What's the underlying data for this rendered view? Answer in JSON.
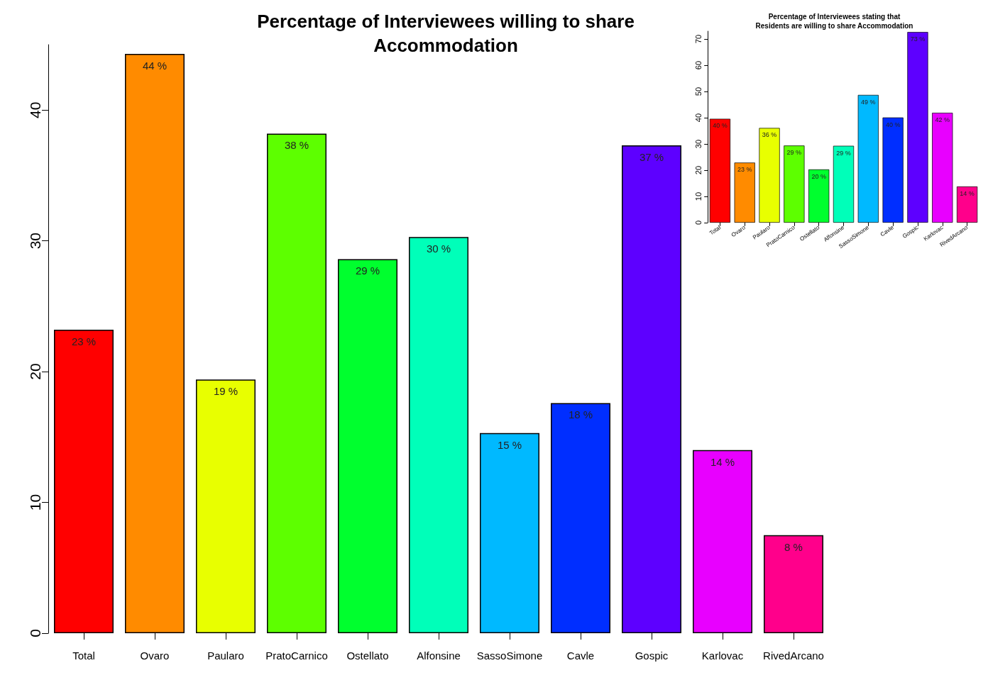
{
  "chart_data": [
    {
      "type": "bar",
      "title": "Percentage of Interviewees willing to share\nAccommodation",
      "categories": [
        "Total",
        "Ovaro",
        "Paularo",
        "PratoCarnico",
        "Ostellato",
        "Alfonsine",
        "SassoSimone",
        "Cavle",
        "Gospic",
        "Karlovac",
        "RivedArcano"
      ],
      "values": [
        23.2,
        44.3,
        19.4,
        38.2,
        28.6,
        30.3,
        15.3,
        17.6,
        37.3,
        14.0,
        7.5
      ],
      "value_labels": [
        "23 %",
        "44 %",
        "19 %",
        "38 %",
        "29 %",
        "30 %",
        "15 %",
        "18 %",
        "37 %",
        "14 %",
        "8 %"
      ],
      "colors": [
        "#ff0000",
        "#ff8b00",
        "#e8ff00",
        "#5dff00",
        "#00ff2e",
        "#00ffb9",
        "#00b9ff",
        "#002eff",
        "#5d00ff",
        "#e800ff",
        "#ff008b"
      ],
      "ylim": [
        0,
        45
      ],
      "yticks": [
        0,
        10,
        20,
        30,
        40
      ],
      "grid": false
    },
    {
      "type": "bar",
      "title": "Percentage of Interviewees stating that\nResidents are willing to share Accommodation",
      "categories": [
        "Total",
        "Ovaro",
        "Paularo",
        "PratoCarnico",
        "Ostellato",
        "Alfonsine",
        "SassoSimone",
        "Cavle",
        "Gospic",
        "Karlovac",
        "RivedArcano"
      ],
      "values": [
        39.6,
        22.9,
        36.1,
        29.4,
        20.3,
        29.3,
        48.7,
        40.1,
        72.7,
        41.9,
        13.8
      ],
      "value_labels": [
        "40 %",
        "23 %",
        "36 %",
        "29 %",
        "20 %",
        "29 %",
        "49 %",
        "40 %",
        "73 %",
        "42 %",
        "14 %"
      ],
      "colors": [
        "#ff0000",
        "#ff8b00",
        "#e8ff00",
        "#5dff00",
        "#00ff2e",
        "#00ffb9",
        "#00b9ff",
        "#002eff",
        "#5d00ff",
        "#e800ff",
        "#ff008b"
      ],
      "ylim": [
        0,
        73
      ],
      "yticks": [
        0,
        10,
        20,
        30,
        40,
        50,
        60,
        70
      ],
      "grid": false
    }
  ]
}
